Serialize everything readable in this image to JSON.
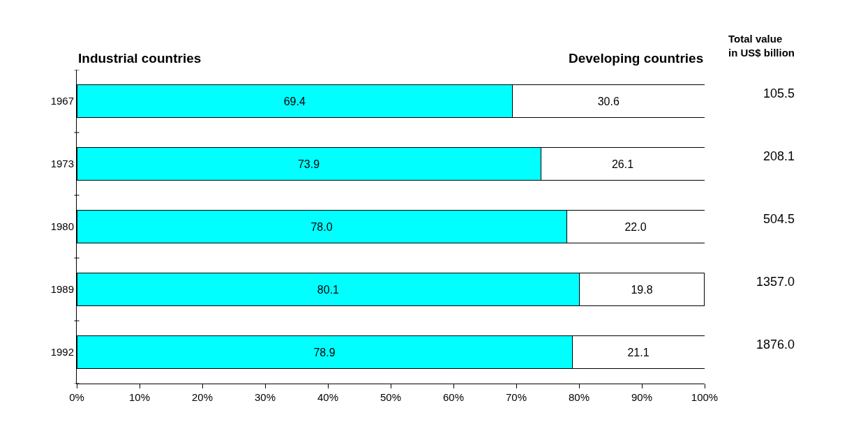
{
  "chart_data": {
    "type": "bar",
    "orientation": "horizontal",
    "stacked": true,
    "categories": [
      "1967",
      "1973",
      "1980",
      "1989",
      "1992"
    ],
    "series": [
      {
        "name": "Industrial countries",
        "color": "#00ffff",
        "values": [
          69.4,
          73.9,
          78.0,
          80.1,
          78.9
        ],
        "value_labels": [
          "69.4",
          "73.9",
          "78.0",
          "80.1",
          "78.9"
        ]
      },
      {
        "name": "Developing countries",
        "color": "#ffffff",
        "values": [
          30.6,
          26.1,
          22.0,
          19.8,
          21.1
        ],
        "value_labels": [
          "30.6",
          "26.1",
          "22.0",
          "19.8",
          "21.1"
        ]
      }
    ],
    "annotations": [
      "Total value\nin US$ billion",
      "105.5",
      "208.1",
      "504.5",
      "1357.0",
      "1876.0"
    ],
    "xlim": [
      0,
      100
    ],
    "xticks": [
      {
        "value": 0,
        "label": "0%"
      },
      {
        "value": 10,
        "label": "10%"
      },
      {
        "value": 20,
        "label": "20%"
      },
      {
        "value": 30,
        "label": "30%"
      },
      {
        "value": 40,
        "label": "40%"
      },
      {
        "value": 50,
        "label": "50%"
      },
      {
        "value": 60,
        "label": "60%"
      },
      {
        "value": 70,
        "label": "70%"
      },
      {
        "value": 80,
        "label": "80%"
      },
      {
        "value": 90,
        "label": "90%"
      },
      {
        "value": 100,
        "label": "100%"
      }
    ],
    "legend": false
  }
}
